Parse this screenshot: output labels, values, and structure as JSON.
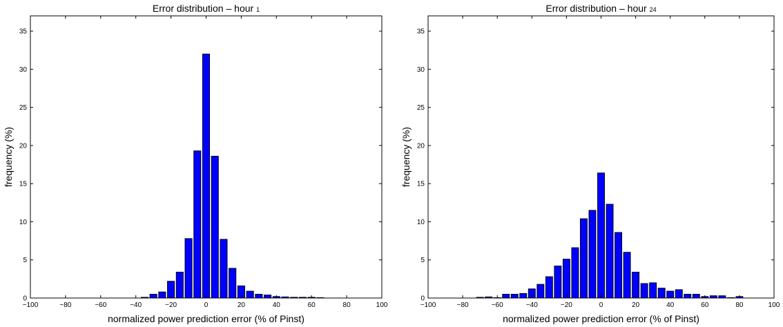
{
  "chart_data": [
    {
      "type": "bar",
      "title": "Error distribution – hour",
      "title_suffix": "1",
      "xlabel": "normalized power prediction error (% of Pinst)",
      "ylabel": "frequency (%)",
      "xlim": [
        -100,
        100
      ],
      "ylim": [
        0,
        37
      ],
      "xticks": [
        -100,
        -80,
        -60,
        -40,
        -20,
        0,
        20,
        40,
        60,
        80,
        100
      ],
      "yticks": [
        0,
        5,
        10,
        15,
        20,
        25,
        30,
        35
      ],
      "bar_width": 4,
      "bar_color": "#0000ff",
      "grid": false,
      "legend": "none",
      "x": [
        -35,
        -30,
        -25,
        -20,
        -15,
        -10,
        -5,
        0,
        5,
        10,
        15,
        20,
        25,
        30,
        35,
        40,
        45,
        50,
        55,
        60,
        65
      ],
      "values": [
        0.1,
        0.5,
        0.8,
        2.2,
        3.4,
        7.8,
        19.3,
        32.0,
        18.6,
        7.7,
        3.9,
        1.6,
        0.9,
        0.5,
        0.4,
        0.2,
        0.15,
        0.1,
        0.1,
        0.1,
        0.05
      ]
    },
    {
      "type": "bar",
      "title": "Error distribution – hour",
      "title_suffix": "24",
      "xlabel": "normalized power prediction error (% of Pinst)",
      "ylabel": "frequency (%)",
      "xlim": [
        -100,
        100
      ],
      "ylim": [
        0,
        37
      ],
      "xticks": [
        -100,
        -80,
        -60,
        -40,
        -20,
        0,
        20,
        40,
        60,
        80,
        100
      ],
      "yticks": [
        0,
        5,
        10,
        15,
        20,
        25,
        30,
        35
      ],
      "bar_width": 4,
      "bar_color": "#0000ff",
      "grid": false,
      "legend": "none",
      "x": [
        -70,
        -65,
        -60,
        -55,
        -50,
        -45,
        -40,
        -35,
        -30,
        -25,
        -20,
        -15,
        -10,
        -5,
        0,
        5,
        10,
        15,
        20,
        25,
        30,
        35,
        40,
        45,
        50,
        55,
        60,
        65,
        70,
        75,
        80
      ],
      "values": [
        0.1,
        0.15,
        0.05,
        0.5,
        0.5,
        0.6,
        1.2,
        1.8,
        2.8,
        4.2,
        5.1,
        6.6,
        10.4,
        11.5,
        16.4,
        12.3,
        8.6,
        6.0,
        3.4,
        1.9,
        2.0,
        1.3,
        0.9,
        1.1,
        0.5,
        0.5,
        0.2,
        0.3,
        0.3,
        0.05,
        0.2
      ]
    }
  ]
}
